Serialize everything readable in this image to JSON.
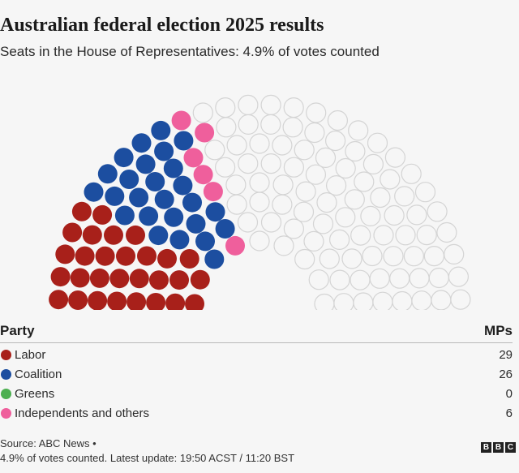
{
  "header": {
    "title": "Australian federal election 2025 results",
    "subtitle": "Seats in the House of Representatives: 4.9% of votes counted"
  },
  "chart_data": {
    "type": "parliament",
    "total_seats": 150,
    "series": [
      {
        "name": "Labor",
        "value": 29,
        "color": "#a8201a"
      },
      {
        "name": "Coalition",
        "value": 26,
        "color": "#1c4ea0"
      },
      {
        "name": "Greens",
        "value": 0,
        "color": "#4caf50"
      },
      {
        "name": "Independents and others",
        "value": 6,
        "color": "#ef5f9c"
      }
    ],
    "undeclared_color": "#f6f6f6",
    "undeclared_stroke": "#d4d4d4"
  },
  "table": {
    "party_header": "Party",
    "mps_header": "MPs"
  },
  "footer": {
    "source_line1": "Source: ABC News •",
    "source_line2": "4.9% of votes counted. Latest update: 19:50 ACST / 11:20 BST",
    "logo_letters": [
      "B",
      "B",
      "C"
    ]
  }
}
